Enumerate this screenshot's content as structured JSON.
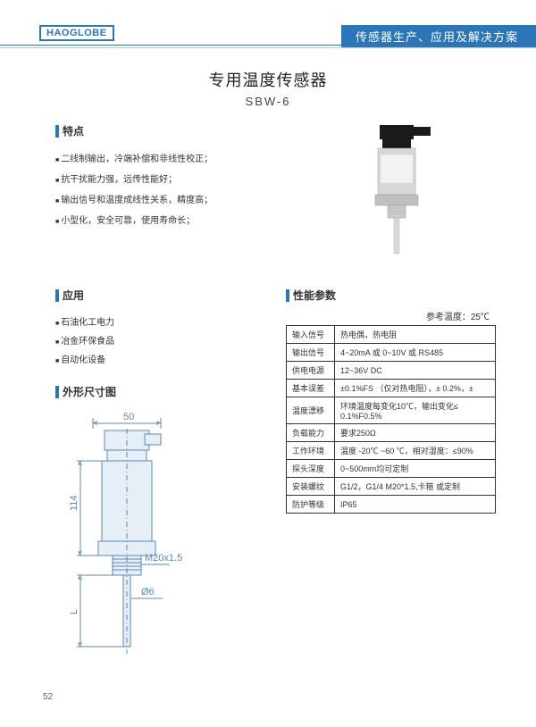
{
  "header": {
    "logo": "HAOGLOBE",
    "tagline": "传感器生产、应用及解决方案"
  },
  "title": {
    "main": "专用温度传感器",
    "sub": "SBW-6"
  },
  "features": {
    "heading": "特点",
    "items": [
      "二线制输出，冷端补偿和非线性校正；",
      "抗干扰能力强，远传性能好；",
      "输出信号和温度成线性关系，精度高；",
      "小型化，安全可靠，使用寿命长；"
    ]
  },
  "applications": {
    "heading": "应用",
    "items": [
      "石油化工电力",
      "冶金环保食品",
      "自动化设备"
    ]
  },
  "dimensions": {
    "heading": "外形尺寸图",
    "w_label": "50",
    "h_label": "114",
    "thread_label": "M20x1.5",
    "probe_dia": "Ø6",
    "probe_len": "L",
    "colors": {
      "line": "#5a88b8",
      "fill_light": "#e6eef6"
    }
  },
  "specs": {
    "heading": "性能参数",
    "ref_temp": "参考温度：25℃",
    "rows": [
      {
        "k": "输入信号",
        "v": "热电偶，热电阻"
      },
      {
        "k": "输出信号",
        "v": "4~20mA  或 0~10V 或 RS485"
      },
      {
        "k": "供电电源",
        "v": "12~36V DC"
      },
      {
        "k": "基本误差",
        "v": "±0.1%FS （仅对热电阻），± 0.2%，±"
      },
      {
        "k": "温度漂移",
        "v": "环境温度每变化10℃，输出变化≤  0.1%F0.5%"
      },
      {
        "k": "负载能力",
        "v": "要求250Ω"
      },
      {
        "k": "工作环境",
        "v": "温度 -20℃ ~60 ℃，相对湿度：≤90%"
      },
      {
        "k": "探头深度",
        "v": "0~500mm均可定制"
      },
      {
        "k": "安装螺纹",
        "v": "G1/2，G1/4  M20*1.5,卡箍 或定制"
      },
      {
        "k": "防护等级",
        "v": "IP65"
      }
    ]
  },
  "page_number": "52",
  "colors": {
    "brand": "#2b76b9",
    "brand_light": "#b8cee4",
    "text": "#333333",
    "bg": "#ffffff"
  }
}
